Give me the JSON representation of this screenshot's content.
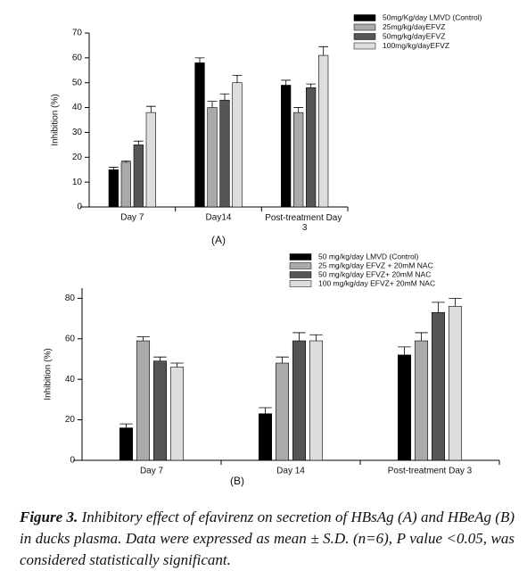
{
  "chart_data": [
    {
      "type": "bar",
      "panel": "(A)",
      "y_label": "Inhibition (%)",
      "categories": [
        "Day 7",
        "Day14",
        "Post-treatment Day 3"
      ],
      "series": [
        {
          "name": "50mg/Kg/day LMVD (Control)",
          "color": "#000000",
          "values": [
            15,
            58,
            49
          ],
          "error": [
            1,
            2,
            2
          ]
        },
        {
          "name": "25mg/kg/dayEFVZ",
          "color": "#aaaaaa",
          "values": [
            18,
            40,
            38
          ],
          "error": [
            0.5,
            2.5,
            2
          ]
        },
        {
          "name": "50mg/kg/dayEFVZ",
          "color": "#555555",
          "values": [
            25,
            43,
            48
          ],
          "error": [
            1.5,
            2.5,
            1.5
          ]
        },
        {
          "name": "100mg/kg/dayEFVZ",
          "color": "#dddddd",
          "values": [
            38,
            50,
            61
          ],
          "error": [
            2.5,
            3,
            3.5
          ]
        }
      ],
      "ylim": [
        0,
        70
      ],
      "yticks": [
        0,
        10,
        20,
        30,
        40,
        50,
        60,
        70
      ]
    },
    {
      "type": "bar",
      "panel": "(B)",
      "y_label": "Inhibition (%)",
      "categories": [
        "Day 7",
        "Day 14",
        "Post-treatment Day 3"
      ],
      "series": [
        {
          "name": "50 mg/kg/day LMVD (Control)",
          "color": "#000000",
          "values": [
            16,
            23,
            52
          ],
          "error": [
            2,
            3,
            4
          ]
        },
        {
          "name": "25 mg/kg/day EFVZ + 20mM NAC",
          "color": "#aaaaaa",
          "values": [
            59,
            48,
            59
          ],
          "error": [
            2,
            3,
            4
          ]
        },
        {
          "name": "50 mg/kg/day EFVZ+ 20mM NAC",
          "color": "#555555",
          "values": [
            49,
            59,
            73
          ],
          "error": [
            2,
            4,
            5
          ]
        },
        {
          "name": "100 mg/kg/day EFVZ+ 20mM NAC",
          "color": "#dddddd",
          "values": [
            46,
            59,
            76
          ],
          "error": [
            2,
            3,
            4
          ]
        }
      ],
      "ylim": [
        0,
        85
      ],
      "yticks": [
        0,
        20,
        40,
        60,
        80
      ]
    }
  ],
  "caption": {
    "label": "Figure 3.",
    "text": "Inhibitory effect of efavirenz on secretion of HBsAg (A) and HBeAg (B) in ducks plasma. Data were expressed as mean ± S.D. (n=6), P value <0.05, was considered statistically significant."
  }
}
